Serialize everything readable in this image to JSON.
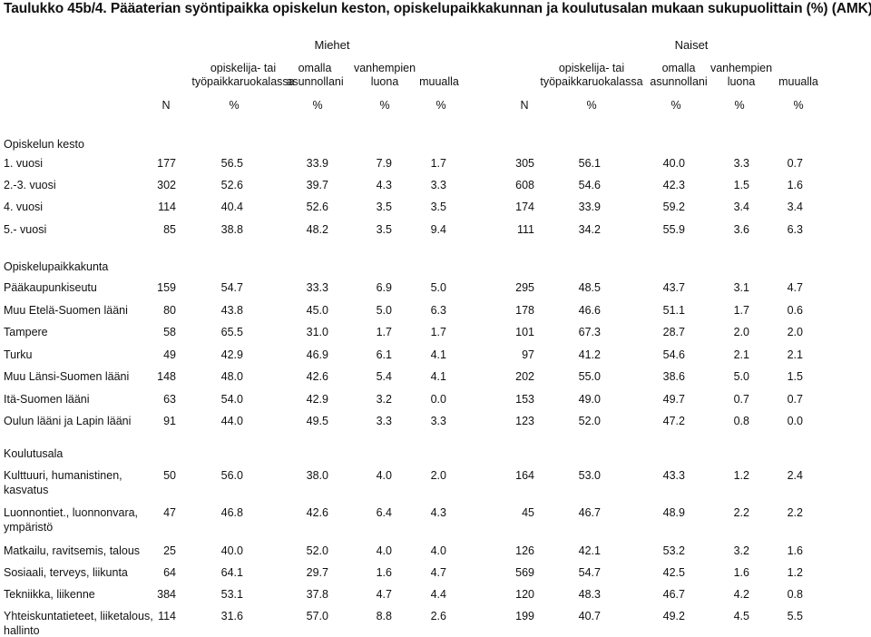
{
  "title": "Taulukko 45b/4. Pääaterian syöntipaikka opiskelun keston, opiskelupaikkakunnan ja koulutusalan mukaan sukupuolittain (%) (AMK)",
  "groups": {
    "men": "Miehet",
    "women": "Naiset"
  },
  "columns": [
    {
      "l1": "opiskelija- tai",
      "l2": "työpaikkaruokalassa",
      "unit": "%"
    },
    {
      "l1": "omalla",
      "l2": "asunnollani",
      "unit": "%"
    },
    {
      "l1": "vanhempien",
      "l2": "luona",
      "unit": "%"
    },
    {
      "l1": "",
      "l2": "muualla",
      "unit": "%"
    }
  ],
  "n_label": "N",
  "sections": [
    {
      "title": "Opiskelun  kesto",
      "rows": [
        {
          "label": [
            "1. vuosi"
          ],
          "m": [
            "177",
            "56.5",
            "33.9",
            "7.9",
            "1.7"
          ],
          "w": [
            "305",
            "56.1",
            "40.0",
            "3.3",
            "0.7"
          ]
        },
        {
          "label": [
            "2.-3. vuosi"
          ],
          "m": [
            "302",
            "52.6",
            "39.7",
            "4.3",
            "3.3"
          ],
          "w": [
            "608",
            "54.6",
            "42.3",
            "1.5",
            "1.6"
          ]
        },
        {
          "label": [
            "4. vuosi"
          ],
          "m": [
            "114",
            "40.4",
            "52.6",
            "3.5",
            "3.5"
          ],
          "w": [
            "174",
            "33.9",
            "59.2",
            "3.4",
            "3.4"
          ]
        },
        {
          "label": [
            "5.- vuosi"
          ],
          "m": [
            "85",
            "38.8",
            "48.2",
            "3.5",
            "9.4"
          ],
          "w": [
            "111",
            "34.2",
            "55.9",
            "3.6",
            "6.3"
          ]
        }
      ]
    },
    {
      "title": "Opiskelupaikkakunta",
      "rows": [
        {
          "label": [
            "Pääkaupunkiseutu"
          ],
          "m": [
            "159",
            "54.7",
            "33.3",
            "6.9",
            "5.0"
          ],
          "w": [
            "295",
            "48.5",
            "43.7",
            "3.1",
            "4.7"
          ]
        },
        {
          "label": [
            "Muu Etelä-Suomen lääni"
          ],
          "m": [
            "80",
            "43.8",
            "45.0",
            "5.0",
            "6.3"
          ],
          "w": [
            "178",
            "46.6",
            "51.1",
            "1.7",
            "0.6"
          ]
        },
        {
          "label": [
            "Tampere"
          ],
          "m": [
            "58",
            "65.5",
            "31.0",
            "1.7",
            "1.7"
          ],
          "w": [
            "101",
            "67.3",
            "28.7",
            "2.0",
            "2.0"
          ]
        },
        {
          "label": [
            "Turku"
          ],
          "m": [
            "49",
            "42.9",
            "46.9",
            "6.1",
            "4.1"
          ],
          "w": [
            "97",
            "41.2",
            "54.6",
            "2.1",
            "2.1"
          ]
        },
        {
          "label": [
            "Muu Länsi-Suomen lääni"
          ],
          "m": [
            "148",
            "48.0",
            "42.6",
            "5.4",
            "4.1"
          ],
          "w": [
            "202",
            "55.0",
            "38.6",
            "5.0",
            "1.5"
          ]
        },
        {
          "label": [
            "Itä-Suomen lääni"
          ],
          "m": [
            "63",
            "54.0",
            "42.9",
            "3.2",
            "0.0"
          ],
          "w": [
            "153",
            "49.0",
            "49.7",
            "0.7",
            "0.7"
          ]
        },
        {
          "label": [
            "Oulun lääni ja Lapin lääni"
          ],
          "m": [
            "91",
            "44.0",
            "49.5",
            "3.3",
            "3.3"
          ],
          "w": [
            "123",
            "52.0",
            "47.2",
            "0.8",
            "0.0"
          ]
        }
      ]
    },
    {
      "title": "Koulutusala",
      "rows": [
        {
          "label": [
            "Kulttuuri, humanistinen,",
            "kasvatus"
          ],
          "m": [
            "50",
            "56.0",
            "38.0",
            "4.0",
            "2.0"
          ],
          "w": [
            "164",
            "53.0",
            "43.3",
            "1.2",
            "2.4"
          ]
        },
        {
          "label": [
            "Luonnontiet., luonnonvara,",
            "ympäristö"
          ],
          "m": [
            "47",
            "46.8",
            "42.6",
            "6.4",
            "4.3"
          ],
          "w": [
            "45",
            "46.7",
            "48.9",
            "2.2",
            "2.2"
          ]
        },
        {
          "label": [
            "Matkailu, ravitsemis, talous"
          ],
          "m": [
            "25",
            "40.0",
            "52.0",
            "4.0",
            "4.0"
          ],
          "w": [
            "126",
            "42.1",
            "53.2",
            "3.2",
            "1.6"
          ]
        },
        {
          "label": [
            "Sosiaali, terveys, liikunta"
          ],
          "m": [
            "64",
            "64.1",
            "29.7",
            "1.6",
            "4.7"
          ],
          "w": [
            "569",
            "54.7",
            "42.5",
            "1.6",
            "1.2"
          ]
        },
        {
          "label": [
            "Tekniikka, liikenne"
          ],
          "m": [
            "384",
            "53.1",
            "37.8",
            "4.7",
            "4.4"
          ],
          "w": [
            "120",
            "48.3",
            "46.7",
            "4.2",
            "0.8"
          ]
        },
        {
          "label": [
            "Yhteiskuntatieteet, liiketalous,",
            "hallinto"
          ],
          "m": [
            "114",
            "31.6",
            "57.0",
            "8.8",
            "2.6"
          ],
          "w": [
            "199",
            "40.7",
            "49.2",
            "4.5",
            "5.5"
          ]
        }
      ]
    }
  ]
}
